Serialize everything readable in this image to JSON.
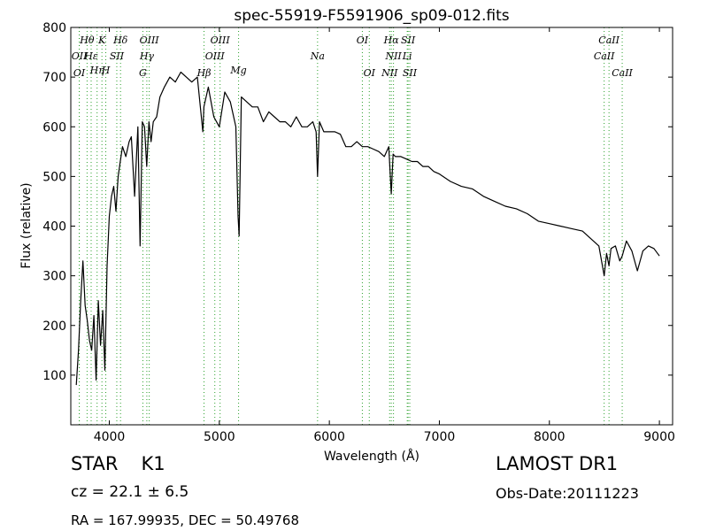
{
  "chart_data": {
    "type": "line",
    "title": "spec-55919-F5591906_sp09-012.fits",
    "xlabel": "Wavelength (Å)",
    "ylabel": "Flux (relative)",
    "xlim": [
      3650,
      9120
    ],
    "ylim": [
      0,
      800
    ],
    "xticks": [
      4000,
      5000,
      6000,
      7000,
      8000,
      9000
    ],
    "yticks": [
      100,
      200,
      300,
      400,
      500,
      600,
      700,
      800
    ],
    "grid": false,
    "line_color": "#000000",
    "line_marker_color": "#2ca02c",
    "series": [
      {
        "x": [
          3700,
          3720,
          3740,
          3760,
          3780,
          3800,
          3820,
          3840,
          3860,
          3880,
          3900,
          3920,
          3940,
          3960,
          3980,
          4000,
          4020,
          4040,
          4060,
          4080,
          4100,
          4120,
          4150,
          4180,
          4200,
          4230,
          4260,
          4280,
          4300,
          4320,
          4340,
          4360,
          4380,
          4400,
          4430,
          4460,
          4500,
          4550,
          4600,
          4650,
          4700,
          4750,
          4800,
          4850,
          4860,
          4900,
          4950,
          5000,
          5050,
          5100,
          5150,
          5170,
          5180,
          5200,
          5250,
          5300,
          5350,
          5400,
          5450,
          5500,
          5550,
          5600,
          5650,
          5700,
          5750,
          5800,
          5850,
          5880,
          5893,
          5910,
          5950,
          6000,
          6050,
          6100,
          6150,
          6200,
          6250,
          6300,
          6350,
          6400,
          6450,
          6500,
          6540,
          6563,
          6580,
          6600,
          6650,
          6700,
          6750,
          6800,
          6850,
          6900,
          6950,
          7000,
          7100,
          7200,
          7300,
          7400,
          7500,
          7600,
          7700,
          7800,
          7900,
          8000,
          8100,
          8200,
          8300,
          8400,
          8450,
          8498,
          8520,
          8542,
          8560,
          8600,
          8640,
          8662,
          8700,
          8750,
          8800,
          8850,
          8900,
          8950,
          9000
        ],
        "y": [
          80,
          150,
          250,
          330,
          240,
          210,
          170,
          150,
          220,
          90,
          250,
          160,
          230,
          110,
          320,
          420,
          460,
          480,
          430,
          500,
          530,
          560,
          540,
          570,
          580,
          460,
          600,
          360,
          610,
          600,
          520,
          610,
          570,
          610,
          620,
          660,
          680,
          700,
          690,
          710,
          700,
          690,
          700,
          590,
          640,
          680,
          620,
          600,
          670,
          650,
          600,
          420,
          380,
          660,
          650,
          640,
          640,
          610,
          630,
          620,
          610,
          610,
          600,
          620,
          600,
          600,
          610,
          590,
          500,
          610,
          590,
          590,
          590,
          585,
          560,
          560,
          570,
          560,
          560,
          555,
          550,
          540,
          560,
          465,
          545,
          540,
          540,
          535,
          530,
          530,
          520,
          520,
          510,
          505,
          490,
          480,
          475,
          460,
          450,
          440,
          435,
          425,
          410,
          405,
          400,
          395,
          390,
          370,
          360,
          300,
          345,
          320,
          355,
          360,
          330,
          340,
          370,
          350,
          310,
          350,
          360,
          355,
          340
        ]
      }
    ],
    "line_markers": [
      {
        "label": "Hθ",
        "x": 3798,
        "row": 1
      },
      {
        "label": "K",
        "x": 3933,
        "row": 1
      },
      {
        "label": "Hδ",
        "x": 4102,
        "row": 1
      },
      {
        "label": "OIII",
        "x": 4363,
        "row": 1
      },
      {
        "label": "OIII",
        "x": 5007,
        "row": 1
      },
      {
        "label": "OI",
        "x": 6300,
        "row": 1
      },
      {
        "label": "Hα",
        "x": 6563,
        "row": 1
      },
      {
        "label": "SII",
        "x": 6716,
        "row": 1
      },
      {
        "label": "CaII",
        "x": 8542,
        "row": 1
      },
      {
        "label": "OII",
        "x": 3727,
        "row": 2
      },
      {
        "label": "Hε",
        "x": 3835,
        "row": 2
      },
      {
        "label": "SII",
        "x": 4068,
        "row": 2
      },
      {
        "label": "Hγ",
        "x": 4341,
        "row": 2
      },
      {
        "label": "OIII",
        "x": 4959,
        "row": 2
      },
      {
        "label": "Na",
        "x": 5893,
        "row": 2
      },
      {
        "label": "NII",
        "x": 6583,
        "row": 2
      },
      {
        "label": "Li",
        "x": 6708,
        "row": 2
      },
      {
        "label": "CaII",
        "x": 8498,
        "row": 2
      },
      {
        "label": "Hη",
        "x": 3889,
        "row": 3
      },
      {
        "label": "H",
        "x": 3968,
        "row": 3
      },
      {
        "label": "Mg",
        "x": 5175,
        "row": 3
      },
      {
        "label": "OI",
        "x": 3727,
        "row": 4
      },
      {
        "label": "G",
        "x": 4305,
        "row": 4
      },
      {
        "label": "Hβ",
        "x": 4861,
        "row": 4
      },
      {
        "label": "OI",
        "x": 6363,
        "row": 4
      },
      {
        "label": "NII",
        "x": 6548,
        "row": 4
      },
      {
        "label": "SII",
        "x": 6731,
        "row": 4
      },
      {
        "label": "CaII",
        "x": 8662,
        "row": 4
      }
    ]
  },
  "info": {
    "object_class": "STAR",
    "subclass": "K1",
    "survey": "LAMOST DR1",
    "redshift": "cz = 22.1 ± 6.5",
    "obs_date": "Obs-Date:20111223",
    "radec": "RA = 167.99935, DEC = 50.49768"
  }
}
